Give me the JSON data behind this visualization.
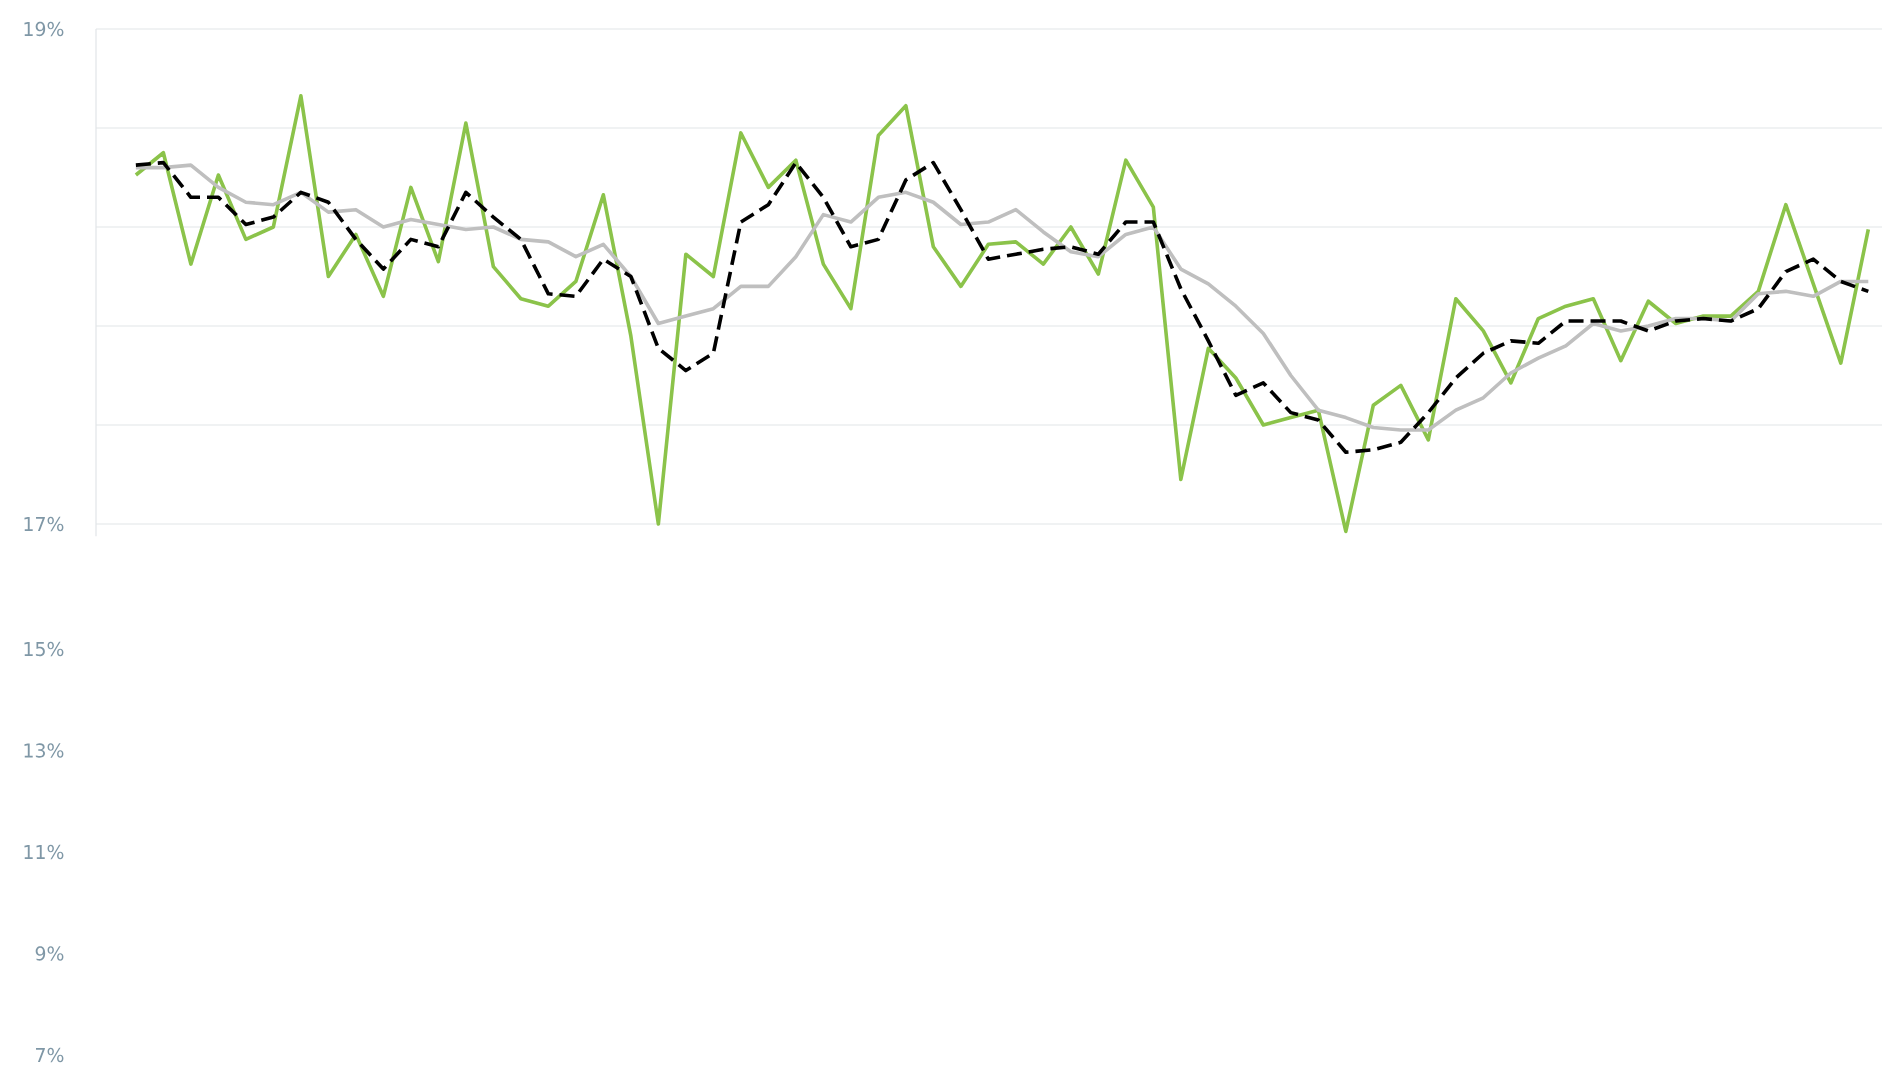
{
  "chart_data": [
    {
      "type": "line",
      "categories": [
        null,
        null,
        null,
        null,
        null,
        null,
        null,
        null,
        null,
        null,
        null,
        null,
        null,
        null,
        null,
        null,
        null,
        null,
        null,
        null,
        null,
        null,
        null,
        null,
        null,
        null,
        null,
        null,
        null,
        null,
        null,
        null,
        null,
        null,
        null,
        null,
        null,
        null,
        null,
        null,
        null,
        null,
        null,
        null,
        null,
        null,
        null,
        null,
        null,
        null,
        null,
        null,
        null,
        null,
        null,
        null,
        null,
        null,
        null,
        null,
        null,
        null,
        null,
        null
      ],
      "series": [
        {
          "color": "#8bc34a",
          "line_style": "solid",
          "values": [
            18.41,
            18.5,
            18.05,
            18.41,
            18.15,
            18.2,
            18.73,
            18.0,
            18.17,
            17.92,
            18.36,
            18.06,
            18.62,
            18.04,
            17.91,
            17.88,
            17.98,
            18.33,
            17.76,
            17.0,
            18.09,
            18.0,
            18.58,
            18.36,
            18.47,
            18.05,
            17.87,
            18.57,
            18.69,
            18.12,
            17.96,
            18.13,
            18.14,
            18.05,
            18.2,
            18.01,
            18.47,
            18.28,
            17.18,
            17.71,
            17.59,
            17.4,
            17.43,
            17.46,
            16.97,
            17.48,
            17.56,
            17.34,
            17.91,
            17.78,
            17.57,
            17.83,
            17.88,
            17.91,
            17.66,
            17.9,
            17.81,
            17.84,
            17.84,
            17.94,
            18.29,
            17.97,
            17.65,
            18.19
          ]
        },
        {
          "color": "#bfbfbf",
          "line_style": "solid",
          "values": [
            18.44,
            18.44,
            18.45,
            18.36,
            18.3,
            18.29,
            18.34,
            18.26,
            18.27,
            18.2,
            18.23,
            18.21,
            18.19,
            18.2,
            18.15,
            18.14,
            18.08,
            18.13,
            18.0,
            17.81,
            17.84,
            17.87,
            17.96,
            17.96,
            18.08,
            18.25,
            18.22,
            18.32,
            18.34,
            18.3,
            18.21,
            18.22,
            18.27,
            18.18,
            18.1,
            18.08,
            18.17,
            18.2,
            18.03,
            17.97,
            17.88,
            17.77,
            17.6,
            17.46,
            17.43,
            17.39,
            17.38,
            17.38,
            17.46,
            17.51,
            17.61,
            17.67,
            17.72,
            17.81,
            17.78,
            17.8,
            17.83,
            17.83,
            17.82,
            17.93,
            17.94,
            17.92,
            17.98,
            17.98
          ]
        },
        {
          "color": "#000000",
          "line_style": "dashed",
          "values": [
            18.45,
            18.46,
            18.32,
            18.32,
            18.21,
            18.24,
            18.34,
            18.3,
            18.15,
            18.03,
            18.15,
            18.12,
            18.34,
            18.24,
            18.15,
            17.93,
            17.92,
            18.07,
            18.0,
            17.71,
            17.62,
            17.69,
            18.22,
            18.29,
            18.46,
            18.32,
            18.12,
            18.15,
            18.39,
            18.46,
            18.27,
            18.07,
            18.09,
            18.11,
            18.12,
            18.09,
            18.22,
            18.22,
            17.95,
            17.74,
            17.52,
            17.57,
            17.45,
            17.42,
            17.29,
            17.3,
            17.33,
            17.45,
            17.59,
            17.69,
            17.74,
            17.73,
            17.82,
            17.82,
            17.82,
            17.78,
            17.82,
            17.83,
            17.82,
            17.87,
            18.02,
            18.07,
            17.98,
            17.94
          ]
        }
      ],
      "ylim": [
        16.95,
        19
      ],
      "yticks": [
        {
          "value": 17,
          "label": "17%"
        },
        {
          "value": 17.4,
          "label": null
        },
        {
          "value": 17.8,
          "label": null
        },
        {
          "value": 18.2,
          "label": null
        },
        {
          "value": 18.6,
          "label": null
        },
        {
          "value": 19,
          "label": "19%"
        }
      ],
      "grid": "y"
    },
    {
      "type": "line",
      "categories": [
        null,
        null,
        null,
        null,
        null,
        null,
        null,
        null,
        null,
        null,
        null,
        null,
        null,
        null,
        null,
        null,
        null,
        null,
        null,
        null,
        null,
        null,
        null,
        null,
        null,
        null,
        null,
        null,
        null,
        null,
        null,
        null,
        null,
        null,
        null,
        null,
        null,
        null,
        null,
        null,
        null,
        null,
        null,
        null,
        null,
        null,
        null,
        null,
        null,
        null,
        null,
        null,
        null,
        null,
        null,
        null,
        null,
        null,
        null,
        null,
        null,
        null,
        null,
        null
      ],
      "ylim": [
        7,
        15
      ],
      "yticks": [
        {
          "value": 7,
          "label": "7%"
        },
        {
          "value": 9,
          "label": "9%"
        },
        {
          "value": 11,
          "label": "11%"
        },
        {
          "value": 13,
          "label": "13%"
        },
        {
          "value": 15,
          "label": "15%"
        }
      ]
    }
  ]
}
